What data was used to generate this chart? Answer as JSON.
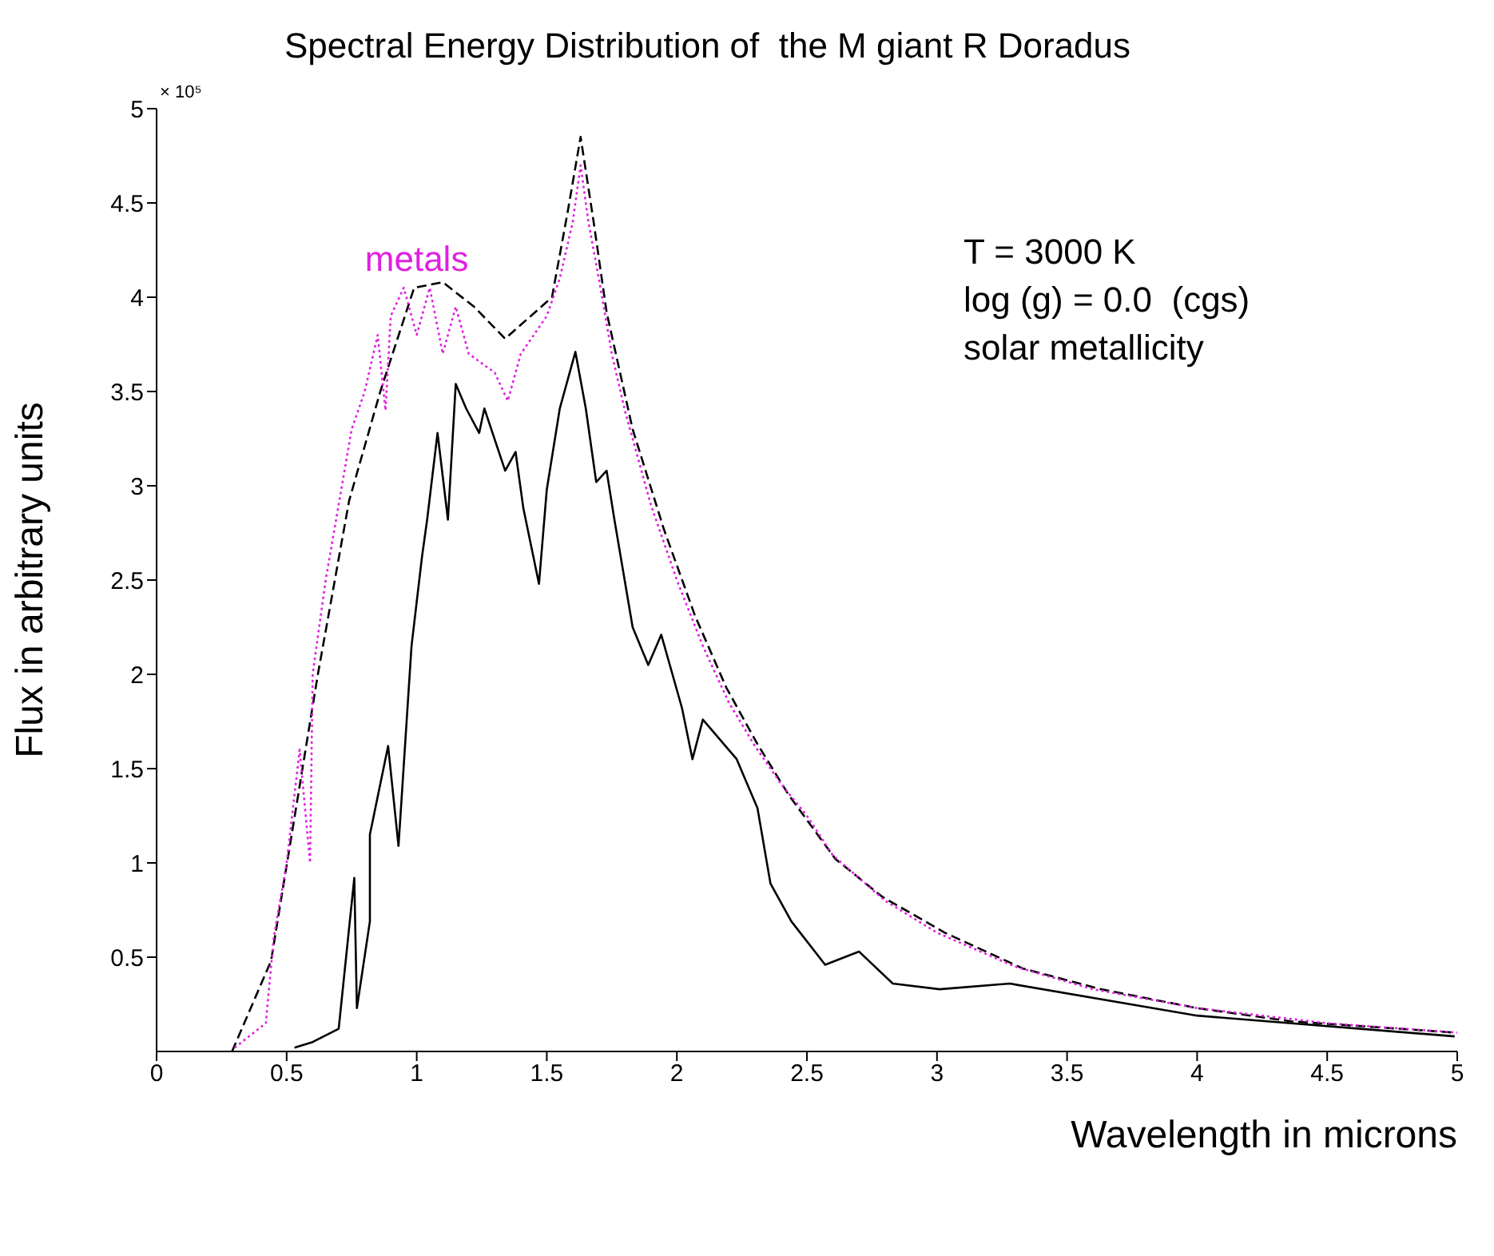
{
  "chart_data": {
    "type": "line",
    "title": "Spectral Energy Distribution of  the M giant R Doradus",
    "xlabel": "Wavelength in microns",
    "ylabel": "Flux in arbitrary units",
    "annotations": [
      "× 10⁵",
      "T = 3000 K",
      "log (g) = 0.0  (cgs)",
      "solar metallicity"
    ],
    "xlim": [
      0,
      5
    ],
    "xticks": [
      0,
      0.5,
      1,
      1.5,
      2,
      2.5,
      3,
      3.5,
      4,
      4.5,
      5
    ],
    "ylim": [
      0,
      5
    ],
    "yticks": [
      0.5,
      1,
      1.5,
      2,
      2.5,
      3,
      3.5,
      4,
      4.5,
      5
    ],
    "series": [
      {
        "color": "#000000",
        "line_style": "dashed",
        "x": [
          0.29,
          0.44,
          0.62,
          0.74,
          0.86,
          0.99,
          1.1,
          1.22,
          1.34,
          1.52,
          1.58,
          1.63,
          1.68,
          1.73,
          1.83,
          1.95,
          2.07,
          2.19,
          2.31,
          2.43,
          2.61,
          2.79,
          3.03,
          3.33,
          3.63,
          4.0,
          4.36,
          4.99
        ],
        "values": [
          0,
          0.48,
          2.0,
          2.92,
          3.5,
          4.05,
          4.08,
          3.95,
          3.78,
          4.0,
          4.45,
          4.85,
          4.4,
          3.92,
          3.3,
          2.77,
          2.31,
          1.93,
          1.63,
          1.36,
          1.02,
          0.82,
          0.63,
          0.44,
          0.33,
          0.23,
          0.16,
          0.1
        ]
      },
      {
        "name": "metals",
        "color": "#e020e0",
        "line_style": "dotted",
        "x": [
          0.3,
          0.42,
          0.45,
          0.5,
          0.55,
          0.59,
          0.6,
          0.65,
          0.7,
          0.75,
          0.8,
          0.85,
          0.88,
          0.9,
          0.95,
          1.0,
          1.05,
          1.1,
          1.15,
          1.2,
          1.3,
          1.35,
          1.4,
          1.5,
          1.55,
          1.6,
          1.63,
          1.66,
          1.7,
          1.75,
          1.8,
          1.9,
          2.0,
          2.1,
          2.2,
          2.3,
          2.4,
          2.5,
          2.6,
          2.8,
          3.0,
          3.3,
          3.6,
          4.0,
          4.5,
          5.0
        ],
        "values": [
          0.02,
          0.15,
          0.6,
          1.0,
          1.6,
          1.0,
          2.0,
          2.5,
          2.9,
          3.3,
          3.5,
          3.8,
          3.4,
          3.9,
          4.05,
          3.8,
          4.05,
          3.7,
          3.95,
          3.7,
          3.6,
          3.45,
          3.7,
          3.9,
          4.1,
          4.4,
          4.7,
          4.4,
          4.1,
          3.7,
          3.4,
          2.9,
          2.5,
          2.15,
          1.85,
          1.62,
          1.42,
          1.25,
          1.04,
          0.8,
          0.63,
          0.45,
          0.33,
          0.23,
          0.15,
          0.1
        ]
      },
      {
        "color": "#000000",
        "line_style": "solid",
        "x": [
          0.53,
          0.6,
          0.7,
          0.76,
          0.77,
          0.82,
          0.82,
          0.89,
          0.93,
          0.98,
          1.02,
          1.04,
          1.08,
          1.12,
          1.15,
          1.19,
          1.24,
          1.26,
          1.34,
          1.38,
          1.41,
          1.47,
          1.5,
          1.55,
          1.61,
          1.65,
          1.69,
          1.73,
          1.76,
          1.83,
          1.89,
          1.94,
          2.02,
          2.06,
          2.1,
          2.23,
          2.31,
          2.36,
          2.44,
          2.57,
          2.7,
          2.83,
          3.01,
          3.28,
          4.0,
          4.99
        ],
        "values": [
          0.02,
          0.05,
          0.12,
          0.92,
          0.23,
          0.69,
          1.15,
          1.62,
          1.09,
          2.15,
          2.62,
          2.82,
          3.28,
          2.82,
          3.54,
          3.41,
          3.28,
          3.41,
          3.08,
          3.18,
          2.88,
          2.48,
          2.98,
          3.41,
          3.71,
          3.41,
          3.02,
          3.08,
          2.82,
          2.25,
          2.05,
          2.21,
          1.82,
          1.55,
          1.76,
          1.55,
          1.29,
          0.89,
          0.69,
          0.46,
          0.53,
          0.36,
          0.33,
          0.36,
          0.19,
          0.08
        ]
      }
    ]
  }
}
